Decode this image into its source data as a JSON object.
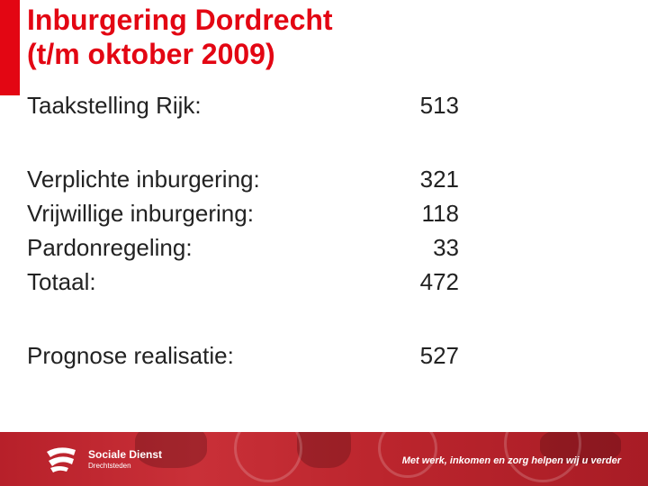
{
  "title": {
    "line1": "Inburgering Dordrecht",
    "line2": "(t/m oktober 2009)"
  },
  "rows": [
    {
      "label": "Taakstelling Rijk:",
      "value": "513"
    },
    {
      "label": "Verplichte inburgering:",
      "value": "321"
    },
    {
      "label": "Vrijwillige inburgering:",
      "value": "118"
    },
    {
      "label": "Pardonregeling:",
      "value": "33"
    },
    {
      "label": "Totaal:",
      "value": "472"
    },
    {
      "label": "Prognose realisatie:",
      "value": "527"
    }
  ],
  "footer": {
    "brand_name": "Sociale Dienst",
    "brand_sub": "Drechtsteden",
    "slogan": "Met werk, inkomen en zorg helpen wij u verder",
    "logo_icon": "sociale-dienst-logo-icon"
  },
  "colors": {
    "accent": "#e30613",
    "text": "#222222",
    "footer": "#c93038"
  }
}
